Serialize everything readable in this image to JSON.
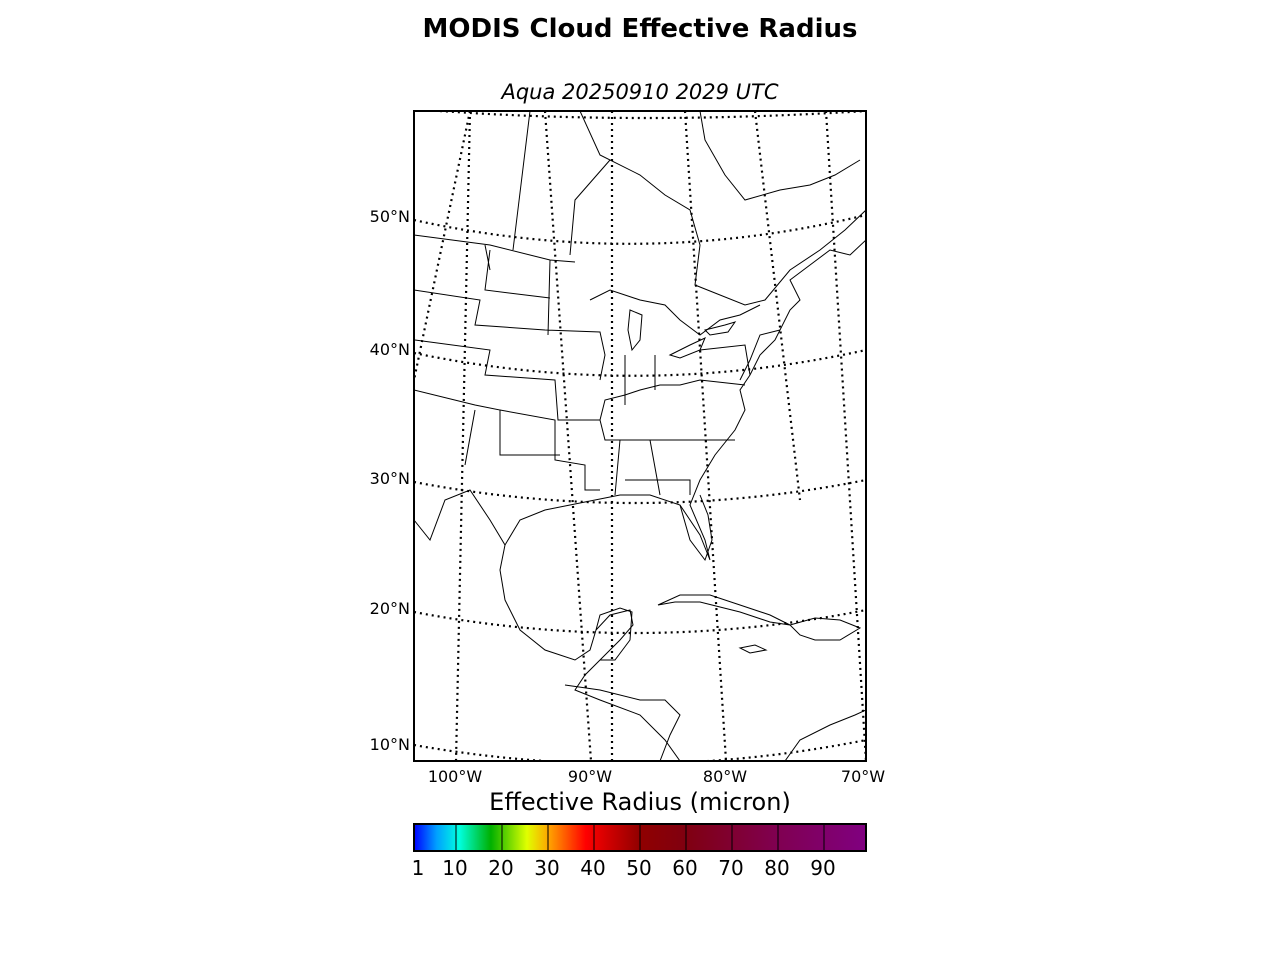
{
  "title": "MODIS Cloud Effective Radius",
  "subtitle": "Aqua 20250910 2029 UTC",
  "latitude_labels": [
    "50°N",
    "40°N",
    "30°N",
    "20°N",
    "10°N"
  ],
  "longitude_labels": [
    "100°W",
    "90°W",
    "80°W",
    "70°W"
  ],
  "colorbar": {
    "title": "Effective Radius (micron)",
    "ticks": [
      "1",
      "10",
      "20",
      "30",
      "40",
      "50",
      "60",
      "70",
      "80",
      "90"
    ]
  }
}
